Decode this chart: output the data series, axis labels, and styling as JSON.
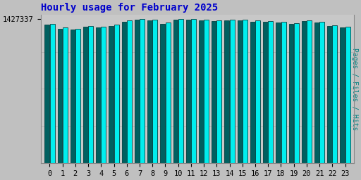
{
  "title": "Hourly usage for February 2025",
  "ylabel_right": "Pages / Files / Hits",
  "ytick_label": "1427337",
  "hours": [
    0,
    1,
    2,
    3,
    4,
    5,
    6,
    7,
    8,
    9,
    10,
    11,
    12,
    13,
    14,
    15,
    16,
    17,
    18,
    19,
    20,
    21,
    22,
    23
  ],
  "values_main": [
    1380000,
    1340000,
    1330000,
    1360000,
    1350000,
    1370000,
    1410000,
    1427337,
    1420000,
    1390000,
    1427337,
    1427337,
    1420000,
    1415000,
    1418000,
    1422000,
    1410000,
    1408000,
    1400000,
    1385000,
    1415000,
    1400000,
    1365000,
    1350000
  ],
  "values_secondary": [
    1370000,
    1330000,
    1320000,
    1350000,
    1340000,
    1360000,
    1400000,
    1418000,
    1410000,
    1380000,
    1418000,
    1420000,
    1412000,
    1407000,
    1410000,
    1415000,
    1402000,
    1400000,
    1392000,
    1377000,
    1407000,
    1392000,
    1357000,
    1342000
  ],
  "bar_color_main": "#00EEEE",
  "bar_color_secondary": "#006060",
  "bar_edge_color": "#004040",
  "background_color": "#C0C0C0",
  "plot_bg_color": "#C8C8C8",
  "title_color": "#0000CC",
  "ylabel_right_color": "#008080",
  "ytick_color": "#000000",
  "xtick_color": "#000000",
  "title_fontsize": 10,
  "tick_fontsize": 7.5,
  "ylabel_right_fontsize": 7,
  "ymax": 1470000,
  "ymin": 0
}
